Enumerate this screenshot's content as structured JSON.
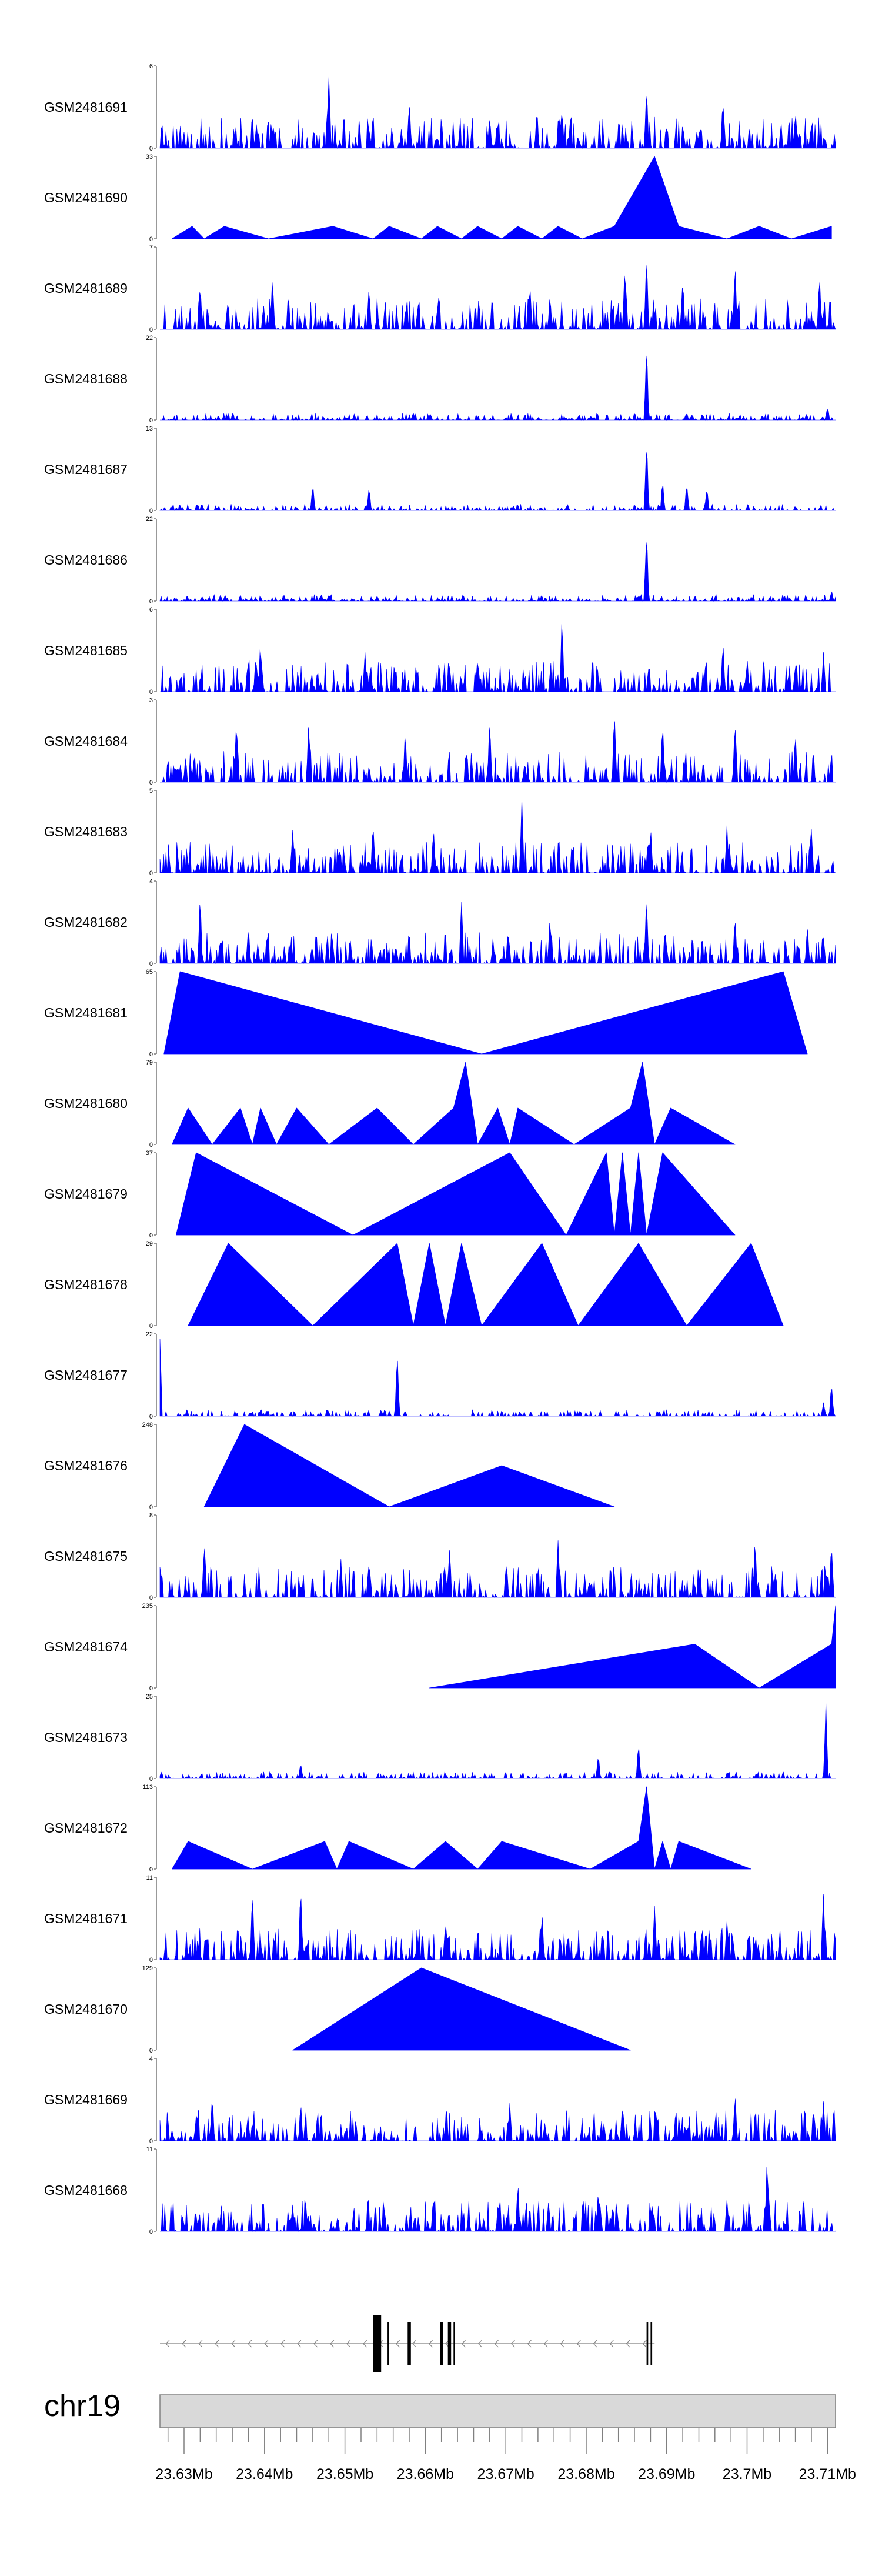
{
  "chart_data": {
    "type": "area",
    "chromosome": "chr19",
    "x_unit": "Mb",
    "xlim": [
      23.627,
      23.711
    ],
    "x_ticks": [
      23.63,
      23.64,
      23.65,
      23.66,
      23.67,
      23.68,
      23.69,
      23.7,
      23.71
    ],
    "x_tick_labels": [
      "23.63Mb",
      "23.64Mb",
      "23.65Mb",
      "23.66Mb",
      "23.67Mb",
      "23.68Mb",
      "23.69Mb",
      "23.7Mb",
      "23.71Mb"
    ],
    "fill_color": "#0000ff",
    "tracks": [
      {
        "name": "GSM2481691",
        "ylim": [
          0,
          6
        ],
        "peaks": [
          [
            23.639,
            2
          ],
          [
            23.648,
            6
          ],
          [
            23.658,
            4
          ],
          [
            23.668,
            2.5
          ],
          [
            23.677,
            3
          ],
          [
            23.6875,
            5
          ],
          [
            23.697,
            4
          ],
          [
            23.706,
            3
          ]
        ],
        "profile": "dense"
      },
      {
        "name": "GSM2481690",
        "ylim": [
          0,
          33
        ],
        "peaks": [
          [
            23.6285,
            0
          ],
          [
            23.631,
            5
          ],
          [
            23.6325,
            0
          ],
          [
            23.635,
            5
          ],
          [
            23.6405,
            0
          ],
          [
            23.6485,
            5
          ],
          [
            23.6535,
            0
          ],
          [
            23.6555,
            5
          ],
          [
            23.6595,
            0
          ],
          [
            23.6615,
            5
          ],
          [
            23.6645,
            0
          ],
          [
            23.6665,
            5
          ],
          [
            23.6695,
            0
          ],
          [
            23.6715,
            5
          ],
          [
            23.6745,
            0
          ],
          [
            23.6765,
            5
          ],
          [
            23.6795,
            0
          ],
          [
            23.6835,
            5
          ],
          [
            23.6885,
            33
          ],
          [
            23.6915,
            5
          ],
          [
            23.6975,
            0
          ],
          [
            23.7015,
            5
          ],
          [
            23.7055,
            0
          ],
          [
            23.7105,
            5
          ]
        ],
        "profile": "blocks"
      },
      {
        "name": "GSM2481689",
        "ylim": [
          0,
          7
        ],
        "peaks": [
          [
            23.632,
            4
          ],
          [
            23.641,
            5
          ],
          [
            23.653,
            4
          ],
          [
            23.673,
            4
          ],
          [
            23.6848,
            6
          ],
          [
            23.6875,
            7
          ],
          [
            23.692,
            5
          ],
          [
            23.6985,
            6
          ],
          [
            23.709,
            5
          ]
        ],
        "profile": "dense"
      },
      {
        "name": "GSM2481688",
        "ylim": [
          0,
          22
        ],
        "peaks": [
          [
            23.6585,
            2
          ],
          [
            23.6875,
            22
          ],
          [
            23.71,
            4
          ]
        ],
        "profile": "sparse"
      },
      {
        "name": "GSM2481687",
        "ylim": [
          0,
          13
        ],
        "peaks": [
          [
            23.646,
            5
          ],
          [
            23.653,
            4
          ],
          [
            23.6875,
            13
          ],
          [
            23.6895,
            5
          ],
          [
            23.6925,
            5
          ],
          [
            23.695,
            4
          ]
        ],
        "profile": "sparse"
      },
      {
        "name": "GSM2481686",
        "ylim": [
          0,
          22
        ],
        "peaks": [
          [
            23.654,
            1.5
          ],
          [
            23.6875,
            22
          ],
          [
            23.7105,
            3
          ]
        ],
        "profile": "sparse"
      },
      {
        "name": "GSM2481685",
        "ylim": [
          0,
          6
        ],
        "peaks": [
          [
            23.6395,
            4
          ],
          [
            23.6525,
            3
          ],
          [
            23.6665,
            3
          ],
          [
            23.677,
            6
          ],
          [
            23.697,
            4
          ],
          [
            23.7095,
            3
          ]
        ],
        "profile": "dense"
      },
      {
        "name": "GSM2481684",
        "ylim": [
          0,
          3
        ],
        "peaks": [
          [
            23.6365,
            2.5
          ],
          [
            23.6455,
            2.5
          ],
          [
            23.6575,
            2
          ],
          [
            23.668,
            2.5
          ],
          [
            23.6835,
            3
          ],
          [
            23.6895,
            2.5
          ],
          [
            23.6985,
            2.5
          ],
          [
            23.706,
            2
          ]
        ],
        "profile": "dense"
      },
      {
        "name": "GSM2481683",
        "ylim": [
          0,
          5
        ],
        "peaks": [
          [
            23.6435,
            3
          ],
          [
            23.6535,
            3.5
          ],
          [
            23.661,
            3
          ],
          [
            23.672,
            5
          ],
          [
            23.688,
            3
          ],
          [
            23.6975,
            3
          ],
          [
            23.708,
            3
          ]
        ],
        "profile": "dense"
      },
      {
        "name": "GSM2481682",
        "ylim": [
          0,
          4
        ],
        "peaks": [
          [
            23.632,
            3.5
          ],
          [
            23.638,
            2
          ],
          [
            23.6645,
            3.5
          ],
          [
            23.6755,
            2.5
          ],
          [
            23.6875,
            3.5
          ],
          [
            23.6985,
            2.5
          ],
          [
            23.7075,
            2
          ]
        ],
        "profile": "dense"
      },
      {
        "name": "GSM2481681",
        "ylim": [
          0,
          65
        ],
        "peaks": [
          [
            23.6275,
            0
          ],
          [
            23.6295,
            65
          ],
          [
            23.667,
            0
          ],
          [
            23.7045,
            65
          ],
          [
            23.7075,
            0
          ]
        ],
        "profile": "blocks"
      },
      {
        "name": "GSM2481680",
        "ylim": [
          0,
          79
        ],
        "peaks": [
          [
            23.6285,
            0
          ],
          [
            23.6305,
            35
          ],
          [
            23.6335,
            0
          ],
          [
            23.637,
            35
          ],
          [
            23.6385,
            0
          ],
          [
            23.6395,
            35
          ],
          [
            23.6415,
            0
          ],
          [
            23.644,
            35
          ],
          [
            23.648,
            0
          ],
          [
            23.654,
            35
          ],
          [
            23.6585,
            0
          ],
          [
            23.6635,
            35
          ],
          [
            23.665,
            79
          ],
          [
            23.6665,
            0
          ],
          [
            23.669,
            35
          ],
          [
            23.6705,
            0
          ],
          [
            23.6715,
            35
          ],
          [
            23.6785,
            0
          ],
          [
            23.6855,
            35
          ],
          [
            23.687,
            79
          ],
          [
            23.6885,
            0
          ],
          [
            23.6905,
            35
          ],
          [
            23.6985,
            0
          ]
        ],
        "profile": "blocks"
      },
      {
        "name": "GSM2481679",
        "ylim": [
          0,
          37
        ],
        "peaks": [
          [
            23.629,
            0
          ],
          [
            23.6315,
            37
          ],
          [
            23.651,
            0
          ],
          [
            23.6705,
            37
          ],
          [
            23.6775,
            0
          ],
          [
            23.6825,
            37
          ],
          [
            23.6835,
            0
          ],
          [
            23.6845,
            37
          ],
          [
            23.6855,
            0
          ],
          [
            23.6865,
            37
          ],
          [
            23.6875,
            0
          ],
          [
            23.6895,
            37
          ],
          [
            23.6985,
            0
          ]
        ],
        "profile": "blocks"
      },
      {
        "name": "GSM2481678",
        "ylim": [
          0,
          29
        ],
        "peaks": [
          [
            23.6305,
            0
          ],
          [
            23.6355,
            29
          ],
          [
            23.646,
            0
          ],
          [
            23.6565,
            29
          ],
          [
            23.6585,
            0
          ],
          [
            23.6605,
            29
          ],
          [
            23.6625,
            0
          ],
          [
            23.6645,
            29
          ],
          [
            23.667,
            0
          ],
          [
            23.6745,
            29
          ],
          [
            23.679,
            0
          ],
          [
            23.6865,
            29
          ],
          [
            23.6925,
            0
          ],
          [
            23.7005,
            29
          ],
          [
            23.7045,
            0
          ]
        ],
        "profile": "blocks"
      },
      {
        "name": "GSM2481677",
        "ylim": [
          0,
          22
        ],
        "peaks": [
          [
            23.627,
            22
          ],
          [
            23.6545,
            2
          ],
          [
            23.6565,
            18
          ],
          [
            23.7095,
            4
          ],
          [
            23.7105,
            10
          ]
        ],
        "profile": "sparse"
      },
      {
        "name": "GSM2481676",
        "ylim": [
          0,
          248
        ],
        "peaks": [
          [
            23.6325,
            0
          ],
          [
            23.6375,
            248
          ],
          [
            23.6555,
            0
          ],
          [
            23.6695,
            124
          ],
          [
            23.6835,
            0
          ]
        ],
        "profile": "blocks"
      },
      {
        "name": "GSM2481675",
        "ylim": [
          0,
          8
        ],
        "peaks": [
          [
            23.6325,
            6
          ],
          [
            23.6495,
            4
          ],
          [
            23.663,
            5
          ],
          [
            23.6765,
            6
          ],
          [
            23.701,
            6
          ],
          [
            23.7105,
            6
          ]
        ],
        "profile": "dense"
      },
      {
        "name": "GSM2481674",
        "ylim": [
          0,
          235
        ],
        "peaks": [
          [
            23.6605,
            0
          ],
          [
            23.6935,
            125
          ],
          [
            23.7015,
            0
          ],
          [
            23.7105,
            125
          ],
          [
            23.711,
            235
          ]
        ],
        "profile": "blocks"
      },
      {
        "name": "GSM2481673",
        "ylim": [
          0,
          25
        ],
        "peaks": [
          [
            23.6445,
            5
          ],
          [
            23.6815,
            8
          ],
          [
            23.6865,
            13
          ],
          [
            23.7098,
            25
          ]
        ],
        "profile": "sparse"
      },
      {
        "name": "GSM2481672",
        "ylim": [
          0,
          113
        ],
        "peaks": [
          [
            23.6285,
            0
          ],
          [
            23.6305,
            38
          ],
          [
            23.6385,
            0
          ],
          [
            23.6475,
            38
          ],
          [
            23.649,
            0
          ],
          [
            23.6505,
            38
          ],
          [
            23.6585,
            0
          ],
          [
            23.6625,
            38
          ],
          [
            23.6665,
            0
          ],
          [
            23.6695,
            38
          ],
          [
            23.6805,
            0
          ],
          [
            23.6865,
            38
          ],
          [
            23.6875,
            113
          ],
          [
            23.6885,
            0
          ],
          [
            23.6895,
            38
          ],
          [
            23.6905,
            0
          ],
          [
            23.6915,
            38
          ],
          [
            23.7005,
            0
          ]
        ],
        "profile": "blocks"
      },
      {
        "name": "GSM2481671",
        "ylim": [
          0,
          11
        ],
        "peaks": [
          [
            23.6385,
            10
          ],
          [
            23.6445,
            11
          ],
          [
            23.6625,
            6
          ],
          [
            23.6745,
            7
          ],
          [
            23.6885,
            8
          ],
          [
            23.6975,
            6
          ],
          [
            23.7095,
            10
          ]
        ],
        "profile": "dense"
      },
      {
        "name": "GSM2481670",
        "ylim": [
          0,
          129
        ],
        "peaks": [
          [
            23.6435,
            0
          ],
          [
            23.6595,
            129
          ],
          [
            23.6855,
            0
          ]
        ],
        "profile": "blocks"
      },
      {
        "name": "GSM2481669",
        "ylim": [
          0,
          4
        ],
        "peaks": [
          [
            23.6335,
            2.5
          ],
          [
            23.6445,
            2
          ],
          [
            23.6705,
            2
          ],
          [
            23.6845,
            2
          ],
          [
            23.6985,
            2.5
          ],
          [
            23.7095,
            2
          ]
        ],
        "profile": "dense"
      },
      {
        "name": "GSM2481668",
        "ylim": [
          0,
          11
        ],
        "peaks": [
          [
            23.6435,
            4
          ],
          [
            23.6715,
            7
          ],
          [
            23.6815,
            6
          ],
          [
            23.6975,
            5
          ],
          [
            23.7025,
            11
          ]
        ],
        "profile": "dense"
      }
    ],
    "gene_track": {
      "strand": "-",
      "line_range": [
        23.627,
        23.6885
      ],
      "exons": [
        [
          23.6535,
          23.6545
        ],
        [
          23.6553,
          23.6555
        ],
        [
          23.6578,
          23.6582
        ],
        [
          23.6618,
          23.6622
        ],
        [
          23.6628,
          23.6632
        ],
        [
          23.6635,
          23.6637
        ],
        [
          23.6875,
          23.6877
        ],
        [
          23.688,
          23.6882
        ]
      ]
    }
  }
}
